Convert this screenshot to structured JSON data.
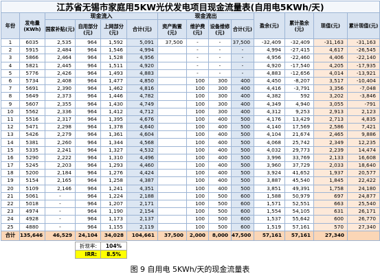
{
  "title": "江苏省无锡市家庭用5KW光伏发电项目现金流量表(自用电5KWh/天)",
  "headers": {
    "year": "年份",
    "generation": "发电量(KWh)",
    "inflow_group": "现金流入",
    "outflow_group": "现金流出",
    "subsidy": "国家补贴(元)",
    "self_use": "自用部分(元)",
    "grid": "上网部分(元)",
    "inflow_total": "合计(元)",
    "asset": "资产购置(元)",
    "maintenance": "维护费(元)",
    "repair": "设备维修(元)",
    "outflow_total": "合计(元)",
    "surplus": "盈余(元)",
    "cum_surplus": "累计盈余(元)",
    "pv": "现值(元)",
    "cum_pv": "累计现值(元)"
  },
  "rows": [
    [
      "1",
      "6035",
      "2,535",
      "964",
      "1,592",
      "5,091",
      "37,500",
      "-",
      "-",
      "37,500",
      "-32,409",
      "-32,409",
      "-31,163",
      "-31,163"
    ],
    [
      "2",
      "5915",
      "2,484",
      "964",
      "1,546",
      "4,994",
      "",
      "-",
      "-",
      "-",
      "4,994",
      "-27,415",
      "4,617",
      "-26,545"
    ],
    [
      "3",
      "5866",
      "2,464",
      "964",
      "1,528",
      "4,956",
      "",
      "-",
      "-",
      "-",
      "4,956",
      "-22,460",
      "4,406",
      "-22,140"
    ],
    [
      "4",
      "5821",
      "2,445",
      "964",
      "1,511",
      "4,920",
      "",
      "-",
      "-",
      "-",
      "4,920",
      "-17,540",
      "4,205",
      "-17,935"
    ],
    [
      "5",
      "5776",
      "2,426",
      "964",
      "1,493",
      "4,883",
      "",
      "-",
      "-",
      "-",
      "4,883",
      "-12,656",
      "4,014",
      "-13,921"
    ],
    [
      "6",
      "5734",
      "2,408",
      "964",
      "1,477",
      "4,850",
      "",
      "100",
      "300",
      "400",
      "4,450",
      "-8,207",
      "3,517",
      "-10,404"
    ],
    [
      "7",
      "5691",
      "2,390",
      "964",
      "1,462",
      "4,816",
      "",
      "100",
      "300",
      "400",
      "4,416",
      "-3,791",
      "3,356",
      "-7,048"
    ],
    [
      "8",
      "5649",
      "2,373",
      "964",
      "1,446",
      "4,782",
      "",
      "100",
      "300",
      "400",
      "4,382",
      "592",
      "3,202",
      "-3,846"
    ],
    [
      "9",
      "5607",
      "2,355",
      "964",
      "1,430",
      "4,749",
      "",
      "100",
      "300",
      "400",
      "4,349",
      "4,940",
      "3,055",
      "-791"
    ],
    [
      "10",
      "5562",
      "2,336",
      "964",
      "1,412",
      "4,712",
      "",
      "100",
      "300",
      "400",
      "4,312",
      "9,253",
      "2,913",
      "2,123"
    ],
    [
      "11",
      "5516",
      "2,317",
      "964",
      "1,395",
      "4,676",
      "",
      "100",
      "400",
      "500",
      "4,176",
      "13,429",
      "2,713",
      "4,835"
    ],
    [
      "12",
      "5471",
      "2,298",
      "964",
      "1,378",
      "4,640",
      "",
      "100",
      "400",
      "500",
      "4,140",
      "17,569",
      "2,586",
      "7,421"
    ],
    [
      "13",
      "5426",
      "2,279",
      "964",
      "1,361",
      "4,604",
      "",
      "100",
      "400",
      "500",
      "4,104",
      "21,674",
      "2,465",
      "9,886"
    ],
    [
      "14",
      "5381",
      "2,260",
      "964",
      "1,344",
      "4,568",
      "",
      "100",
      "400",
      "500",
      "4,068",
      "25,742",
      "2,349",
      "12,235"
    ],
    [
      "15",
      "5335",
      "2,241",
      "964",
      "1,327",
      "4,532",
      "",
      "100",
      "400",
      "500",
      "4,032",
      "29,773",
      "2,239",
      "14,474"
    ],
    [
      "16",
      "5290",
      "2,222",
      "964",
      "1,310",
      "4,496",
      "",
      "100",
      "400",
      "500",
      "3,996",
      "33,769",
      "2,133",
      "16,608"
    ],
    [
      "17",
      "5245",
      "2,203",
      "964",
      "1,293",
      "4,460",
      "",
      "100",
      "400",
      "500",
      "3,960",
      "37,729",
      "2,033",
      "18,640"
    ],
    [
      "18",
      "5200",
      "2,184",
      "964",
      "1,276",
      "4,424",
      "",
      "100",
      "400",
      "500",
      "3,924",
      "41,652",
      "1,937",
      "20,577"
    ],
    [
      "19",
      "5154",
      "2,165",
      "964",
      "1,258",
      "4,387",
      "",
      "100",
      "400",
      "500",
      "3,887",
      "45,540",
      "1,845",
      "22,422"
    ],
    [
      "20",
      "5109",
      "2,146",
      "964",
      "1,241",
      "4,351",
      "",
      "100",
      "400",
      "500",
      "3,851",
      "49,391",
      "1,758",
      "24,180"
    ],
    [
      "21",
      "5061",
      "-",
      "964",
      "1,224",
      "2,188",
      "",
      "100",
      "500",
      "600",
      "1,588",
      "50,979",
      "697",
      "24,877"
    ],
    [
      "22",
      "5018",
      "-",
      "964",
      "1,207",
      "2,171",
      "",
      "100",
      "500",
      "600",
      "1,571",
      "52,551",
      "663",
      "25,540"
    ],
    [
      "23",
      "4974",
      "-",
      "964",
      "1,190",
      "2,154",
      "",
      "100",
      "500",
      "600",
      "1,554",
      "54,105",
      "631",
      "26,171"
    ],
    [
      "24",
      "4928",
      "-",
      "964",
      "1,173",
      "2,137",
      "",
      "100",
      "500",
      "600",
      "1,537",
      "55,642",
      "600",
      "26,770"
    ],
    [
      "25",
      "4880",
      "-",
      "964",
      "1,155",
      "2,119",
      "",
      "100",
      "500",
      "600",
      "1,519",
      "57,161",
      "570",
      "27,340"
    ]
  ],
  "total_row": [
    "合计",
    "135,646",
    "46,529",
    "24,104",
    "34,028",
    "104,661",
    "37,500",
    "2,000",
    "8,000",
    "47,500",
    "57,161",
    "57,161",
    "27,340",
    ""
  ],
  "discount_rate": {
    "label": "折现率:",
    "value": "104%"
  },
  "irr": {
    "label": "IRR:",
    "value": "8.5%"
  },
  "caption": "图 9 自用电 5KWh/天的现金流量表",
  "colors": {
    "header_bg": "#d8e3f1",
    "title_bg": "#f4f7fb",
    "total_column_bg": "#dce6f2",
    "present_value_bg": "#fde9d9",
    "total_row_bg": "#fbd6b6",
    "irr_highlight": "#ffff00",
    "grid_line": "#9cb4d4"
  }
}
